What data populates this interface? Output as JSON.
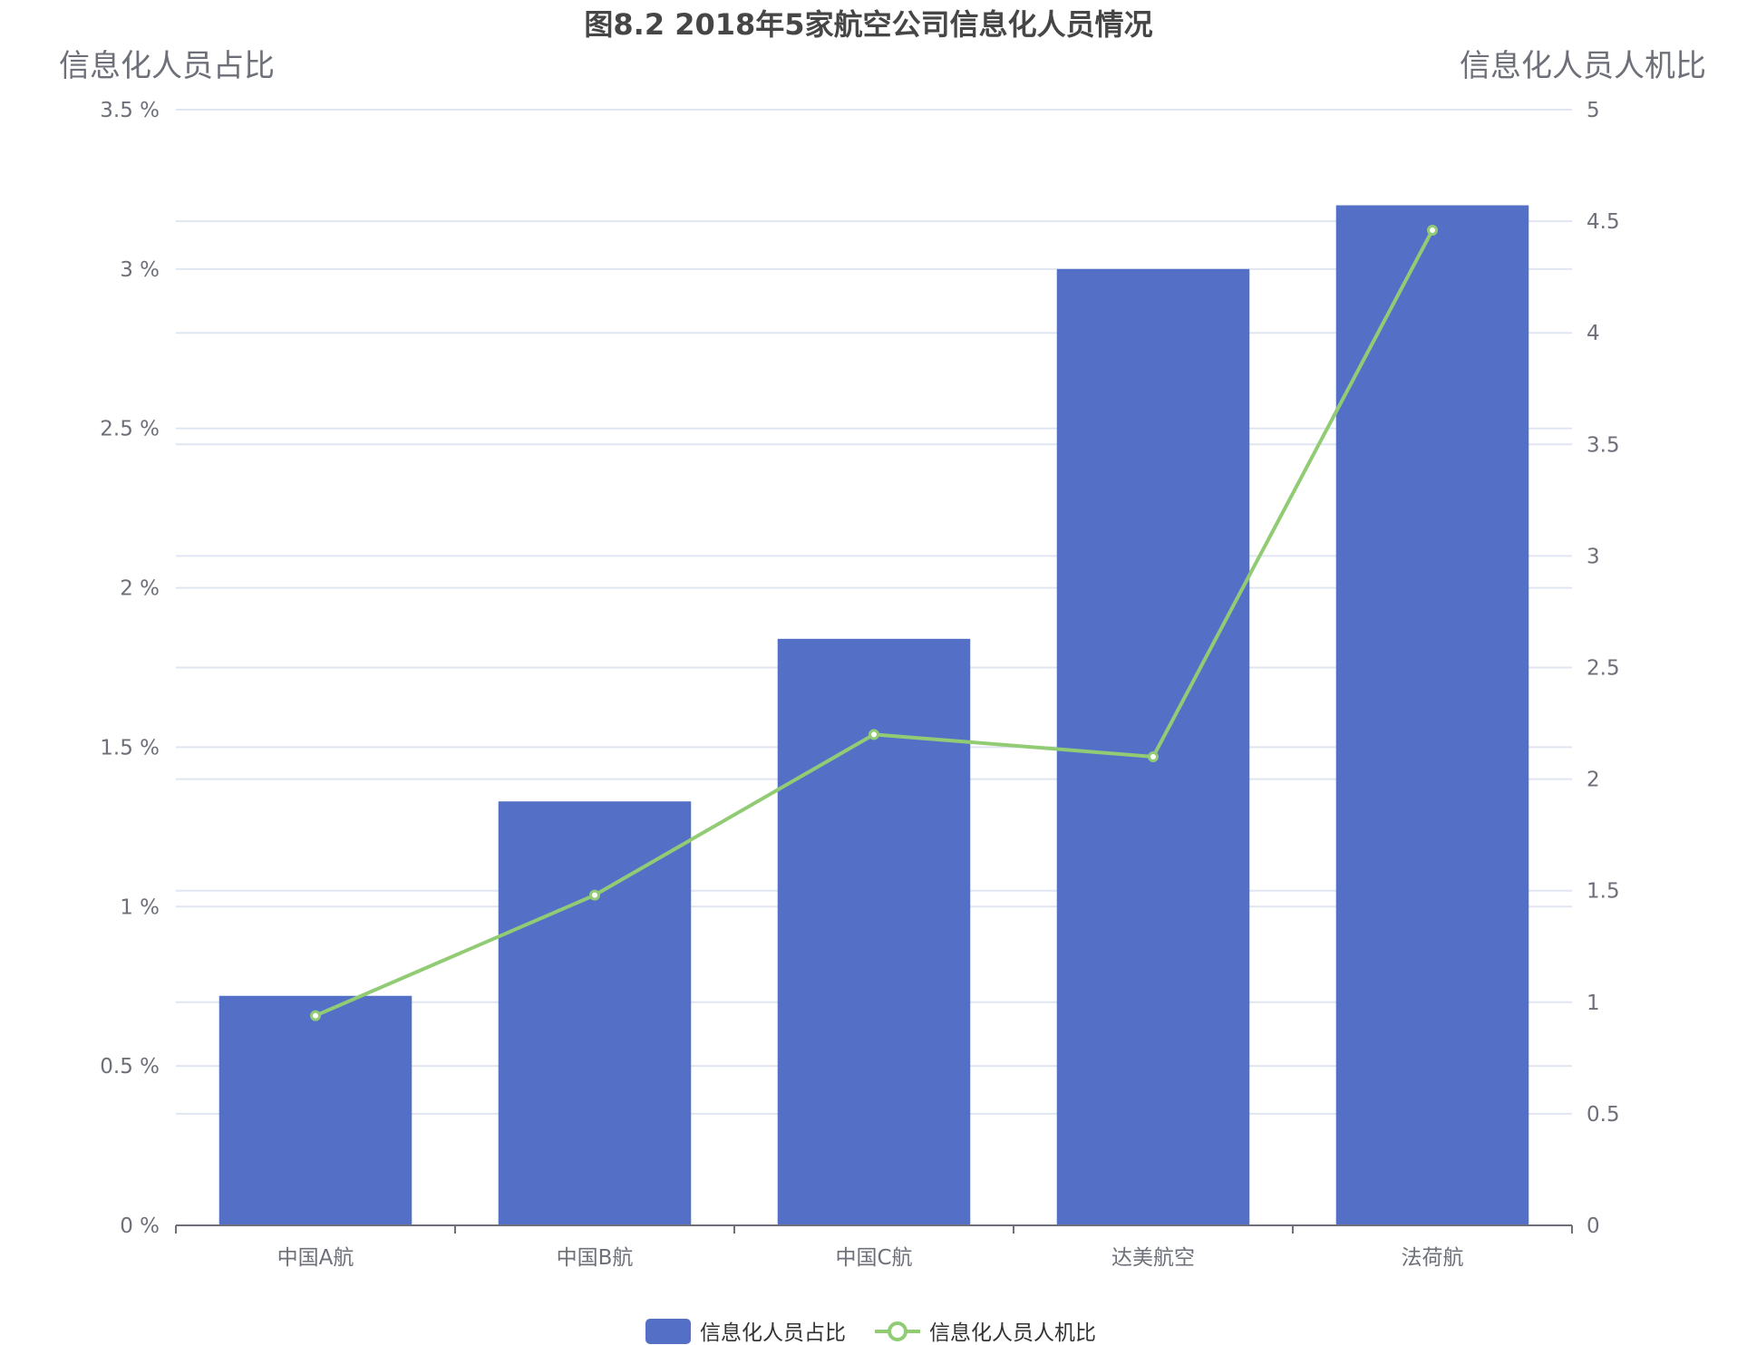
{
  "chart_data": {
    "type": "bar",
    "title": "图8.2 2018年5家航空公司信息化人员情况",
    "categories": [
      "中国A航",
      "中国B航",
      "中国C航",
      "达美航空",
      "法荷航"
    ],
    "series": [
      {
        "name": "信息化人员占比",
        "type": "bar",
        "axis": "left",
        "values": [
          0.72,
          1.33,
          1.84,
          3.0,
          3.2
        ],
        "color": "#5470c6"
      },
      {
        "name": "信息化人员人机比",
        "type": "line",
        "axis": "right",
        "values": [
          0.94,
          1.48,
          2.2,
          2.1,
          4.46
        ],
        "color": "#91cc75"
      }
    ],
    "yaxis_left": {
      "name": "信息化人员占比",
      "ylim": [
        0,
        3.5
      ],
      "ticks": [
        0,
        0.5,
        1,
        1.5,
        2,
        2.5,
        3,
        3.5
      ],
      "tick_labels": [
        "0 %",
        "0.5 %",
        "1 %",
        "1.5 %",
        "2 %",
        "2.5 %",
        "3 %",
        "3.5 %"
      ]
    },
    "yaxis_right": {
      "name": "信息化人员人机比",
      "ylim": [
        0,
        5
      ],
      "ticks": [
        0,
        0.5,
        1,
        1.5,
        2,
        2.5,
        3,
        3.5,
        4,
        4.5,
        5
      ],
      "tick_labels": [
        "0",
        "0.5",
        "1",
        "1.5",
        "2",
        "2.5",
        "3",
        "3.5",
        "4",
        "4.5",
        "5"
      ]
    },
    "legend": [
      "信息化人员占比",
      "信息化人员人机比"
    ],
    "legend_position": "bottom-center",
    "grid": true
  }
}
